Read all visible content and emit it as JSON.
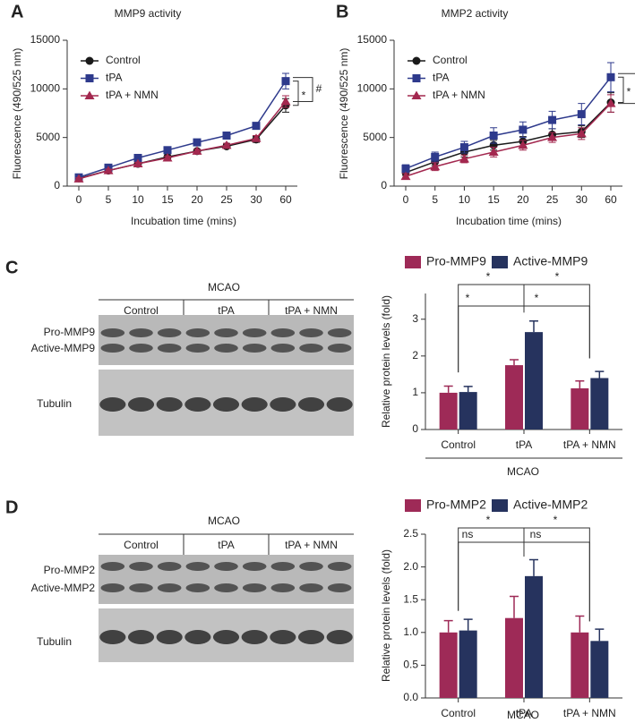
{
  "panels": [
    "A",
    "B",
    "C",
    "D"
  ],
  "blots": [
    {
      "group": "MCAO",
      "lanes": [
        "Control",
        "tPA",
        "tPA + NMN"
      ],
      "rows": [
        "Pro-MMP9",
        "Active-MMP9",
        "Tubulin"
      ]
    },
    {
      "group": "MCAO",
      "lanes": [
        "Control",
        "tPA",
        "tPA + NMN"
      ],
      "rows": [
        "Pro-MMP2",
        "Active-MMP2",
        "Tubulin"
      ]
    }
  ],
  "chart_data": [
    {
      "type": "line",
      "title": "MMP9 activity",
      "x_label": "Incubation time (mins)",
      "y_label": "Fluorescence (490/525 nm)",
      "categories": [
        "0",
        "5",
        "10",
        "15",
        "20",
        "25",
        "30",
        "60"
      ],
      "ylim": [
        0,
        15000
      ],
      "yticks": [
        0,
        5000,
        10000,
        15000
      ],
      "series": [
        {
          "name": "Control",
          "color": "#1a1a1a",
          "marker": "circle",
          "values": [
            800,
            1600,
            2300,
            3000,
            3600,
            4100,
            4800,
            8300
          ],
          "errors": [
            100,
            150,
            150,
            200,
            200,
            200,
            300,
            700
          ]
        },
        {
          "name": "tPA",
          "color": "#2e3a8c",
          "marker": "square",
          "values": [
            900,
            1900,
            2900,
            3700,
            4500,
            5200,
            6200,
            10800
          ],
          "errors": [
            150,
            200,
            200,
            250,
            250,
            250,
            300,
            800
          ]
        },
        {
          "name": "tPA + NMN",
          "color": "#a3284f",
          "marker": "triangle",
          "values": [
            750,
            1600,
            2300,
            2900,
            3600,
            4200,
            4900,
            8700
          ],
          "errors": [
            100,
            150,
            150,
            200,
            200,
            200,
            300,
            600
          ]
        }
      ],
      "annotations": [
        "*",
        "#"
      ]
    },
    {
      "type": "line",
      "title": "MMP2 activity",
      "x_label": "Incubation time (mins)",
      "y_label": "Fluorescence (490/525 nm)",
      "categories": [
        "0",
        "5",
        "10",
        "15",
        "20",
        "25",
        "30",
        "60"
      ],
      "ylim": [
        0,
        15000
      ],
      "yticks": [
        0,
        5000,
        10000,
        15000
      ],
      "series": [
        {
          "name": "Control",
          "color": "#1a1a1a",
          "marker": "circle",
          "values": [
            1400,
            2500,
            3500,
            4200,
            4600,
            5300,
            5600,
            8600
          ],
          "errors": [
            300,
            400,
            500,
            500,
            500,
            600,
            600,
            1000
          ]
        },
        {
          "name": "tPA",
          "color": "#2e3a8c",
          "marker": "square",
          "values": [
            1800,
            3000,
            4000,
            5200,
            5800,
            6800,
            7400,
            11200
          ],
          "errors": [
            400,
            500,
            600,
            800,
            800,
            900,
            1100,
            1500
          ]
        },
        {
          "name": "tPA + NMN",
          "color": "#a3284f",
          "marker": "triangle",
          "values": [
            1000,
            2000,
            2800,
            3500,
            4200,
            5000,
            5400,
            8500
          ],
          "errors": [
            300,
            400,
            400,
            500,
            500,
            500,
            600,
            900
          ]
        }
      ],
      "annotations": [
        "*",
        "#"
      ]
    },
    {
      "type": "bar",
      "y_label": "Relative protein levels (fold)",
      "group_label": "MCAO",
      "categories": [
        "Control",
        "tPA",
        "tPA + NMN"
      ],
      "ylim": [
        0,
        3.7
      ],
      "yticks": [
        0,
        1,
        2,
        3
      ],
      "series": [
        {
          "name": "Pro-MMP9",
          "color": "#9e2a57",
          "values": [
            1.0,
            1.75,
            1.12
          ],
          "errors": [
            0.18,
            0.15,
            0.2
          ]
        },
        {
          "name": "Active-MMP9",
          "color": "#26335e",
          "values": [
            1.02,
            2.65,
            1.4
          ],
          "errors": [
            0.15,
            0.3,
            0.18
          ]
        }
      ],
      "annotations": [
        "*",
        "*",
        "*",
        "*"
      ]
    },
    {
      "type": "bar",
      "y_label": "Relative protein levels (fold)",
      "group_label": "MCAO",
      "categories": [
        "Control",
        "tPA",
        "tPA + NMN"
      ],
      "ylim": [
        0,
        2.5
      ],
      "yticks": [
        {
          "value": 0,
          "label": "0.0"
        },
        0.5,
        {
          "value": 1,
          "label": "1.0"
        },
        1.5,
        {
          "value": 2,
          "label": "2.0"
        },
        2.5
      ],
      "series": [
        {
          "name": "Pro-MMP2",
          "color": "#9e2a57",
          "values": [
            1.0,
            1.22,
            1.0
          ],
          "errors": [
            0.18,
            0.33,
            0.25
          ]
        },
        {
          "name": "Active-MMP2",
          "color": "#26335e",
          "values": [
            1.03,
            1.86,
            0.87
          ],
          "errors": [
            0.17,
            0.25,
            0.18
          ]
        }
      ],
      "annotations": [
        "*",
        "*",
        "ns",
        "ns"
      ]
    }
  ]
}
